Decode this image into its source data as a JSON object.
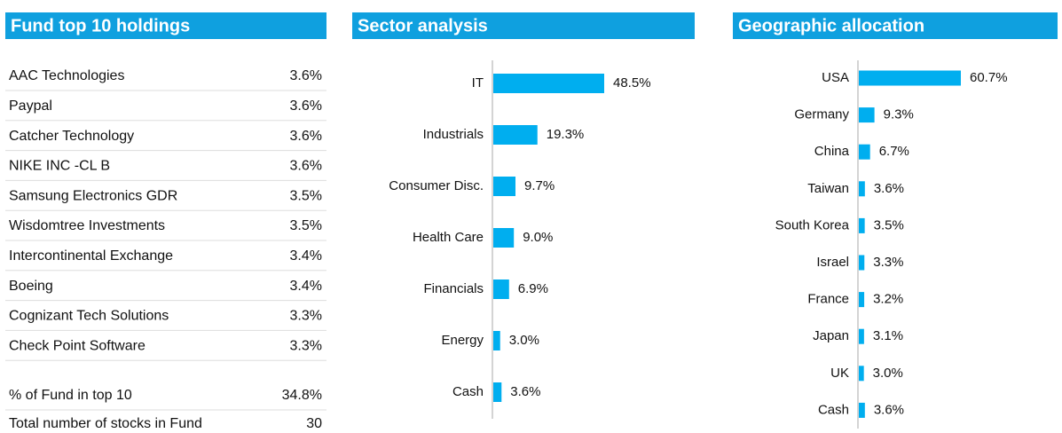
{
  "holdings": {
    "title": "Fund top 10 holdings",
    "rows": [
      [
        "AAC Technologies",
        "3.6%"
      ],
      [
        "Paypal",
        "3.6%"
      ],
      [
        "Catcher Technology",
        "3.6%"
      ],
      [
        "NIKE INC -CL B",
        "3.6%"
      ],
      [
        "Samsung Electronics GDR",
        "3.5%"
      ],
      [
        "Wisdomtree Investments",
        "3.5%"
      ],
      [
        "Intercontinental Exchange",
        "3.4%"
      ],
      [
        "Boeing",
        "3.4%"
      ],
      [
        "Cognizant Tech Solutions",
        "3.3%"
      ],
      [
        "Check Point Software",
        "3.3%"
      ]
    ],
    "summary": [
      [
        "% of Fund in top 10",
        "34.8%"
      ],
      [
        "Total number of stocks in Fund",
        "30"
      ]
    ]
  },
  "chart_data": [
    {
      "type": "bar",
      "orientation": "horizontal",
      "title": "Sector analysis",
      "color": "#00aeef",
      "categories": [
        "IT",
        "Industrials",
        "Consumer Disc.",
        "Health Care",
        "Financials",
        "Energy",
        "Cash"
      ],
      "values": [
        48.5,
        19.3,
        9.7,
        9.0,
        6.9,
        3.0,
        3.6
      ],
      "value_labels": [
        "48.5%",
        "19.3%",
        "9.7%",
        "9.0%",
        "6.9%",
        "3.0%",
        "3.6%"
      ]
    },
    {
      "type": "bar",
      "orientation": "horizontal",
      "title": "Geographic allocation",
      "color": "#00aeef",
      "categories": [
        "USA",
        "Germany",
        "China",
        "Taiwan",
        "South Korea",
        "Israel",
        "France",
        "Japan",
        "UK",
        "Cash"
      ],
      "values": [
        60.7,
        9.3,
        6.7,
        3.6,
        3.5,
        3.3,
        3.2,
        3.1,
        3.0,
        3.6
      ],
      "value_labels": [
        "60.7%",
        "9.3%",
        "6.7%",
        "3.6%",
        "3.5%",
        "3.3%",
        "3.2%",
        "3.1%",
        "3.0%",
        "3.6%"
      ]
    }
  ]
}
